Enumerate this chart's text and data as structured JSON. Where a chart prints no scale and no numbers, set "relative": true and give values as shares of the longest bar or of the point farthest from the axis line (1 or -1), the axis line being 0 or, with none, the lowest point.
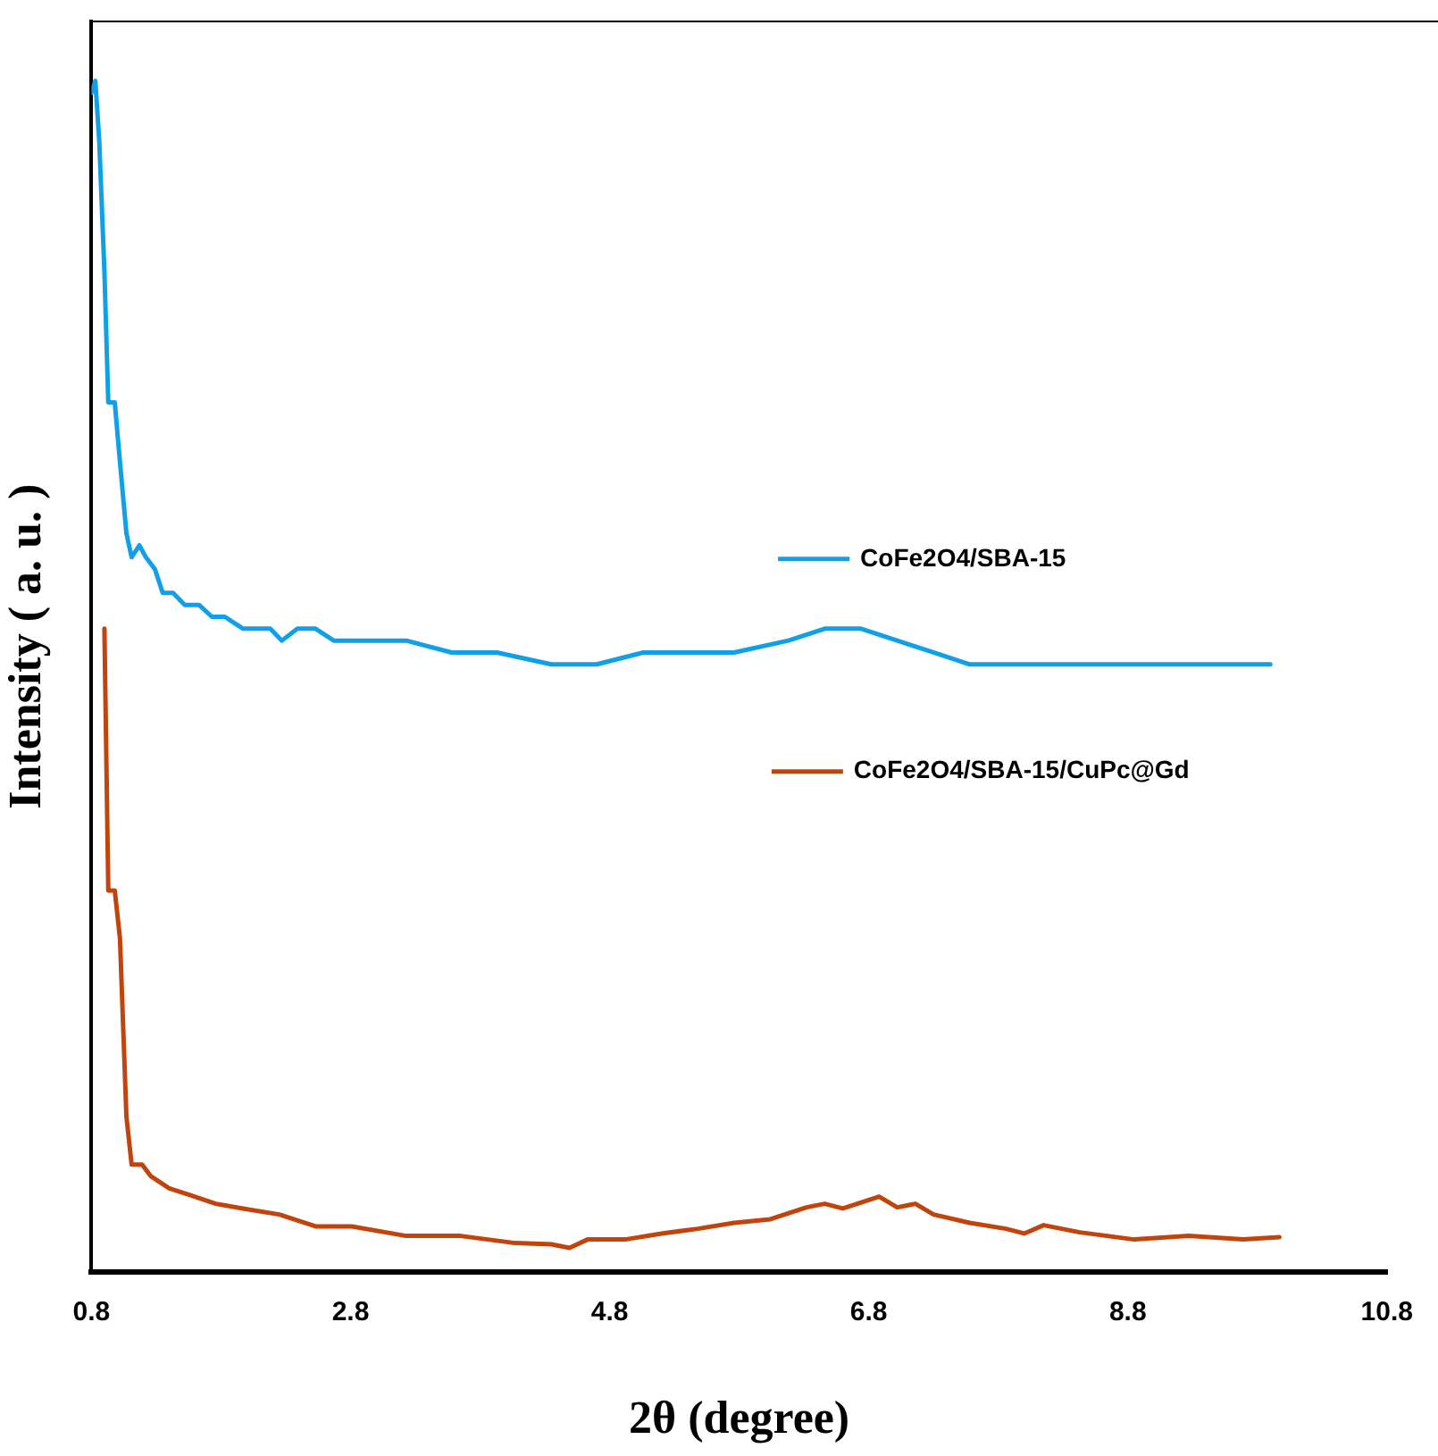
{
  "chart_data": {
    "type": "line",
    "relative": true,
    "xlabel": "2θ (degree)",
    "ylabel": "Intensity ( a. u. )",
    "xlim": [
      0.8,
      10.8
    ],
    "xticks": [
      0.8,
      2.8,
      4.8,
      6.8,
      8.8,
      10.8
    ],
    "legend": "right",
    "grid": false,
    "marker": "none",
    "line_style": "solid",
    "series": [
      {
        "name": "CoFe2O4/SBA-15",
        "color": "#0fa0e8",
        "x": [
          0.8,
          0.83,
          0.86,
          0.9,
          0.93,
          0.98,
          1.02,
          1.07,
          1.11,
          1.17,
          1.22,
          1.29,
          1.35,
          1.43,
          1.52,
          1.63,
          1.73,
          1.83,
          1.97,
          2.08,
          2.18,
          2.27,
          2.39,
          2.53,
          2.67,
          2.88,
          3.23,
          3.58,
          3.93,
          4.35,
          4.7,
          5.06,
          5.2,
          5.34,
          5.76,
          6.18,
          6.46,
          6.74,
          7.02,
          7.3,
          7.58,
          7.86,
          8.29,
          8.71,
          9.13,
          9.55,
          9.9
        ],
        "values": [
          0.99,
          1.0,
          0.95,
          0.84,
          0.73,
          0.73,
          0.68,
          0.62,
          0.6,
          0.61,
          0.6,
          0.59,
          0.57,
          0.57,
          0.56,
          0.56,
          0.55,
          0.55,
          0.54,
          0.54,
          0.54,
          0.53,
          0.54,
          0.54,
          0.53,
          0.53,
          0.53,
          0.52,
          0.52,
          0.51,
          0.51,
          0.52,
          0.52,
          0.52,
          0.52,
          0.53,
          0.54,
          0.54,
          0.53,
          0.52,
          0.51,
          0.51,
          0.51,
          0.51,
          0.51,
          0.51,
          0.51
        ]
      },
      {
        "name": "CoFe2O4/SBA-15/CuPc@Gd",
        "color": "#c0440c",
        "x": [
          0.9,
          0.93,
          0.98,
          1.02,
          1.07,
          1.11,
          1.19,
          1.26,
          1.4,
          1.54,
          1.76,
          1.97,
          2.25,
          2.53,
          2.81,
          3.23,
          3.65,
          4.07,
          4.35,
          4.49,
          4.63,
          4.92,
          5.2,
          5.48,
          5.76,
          6.04,
          6.32,
          6.46,
          6.6,
          6.88,
          7.02,
          7.16,
          7.3,
          7.58,
          7.86,
          8.0,
          8.15,
          8.43,
          8.85,
          9.27,
          9.69,
          9.97
        ],
        "values": [
          0.54,
          0.32,
          0.32,
          0.28,
          0.13,
          0.09,
          0.09,
          0.08,
          0.07,
          0.065,
          0.057,
          0.053,
          0.048,
          0.038,
          0.038,
          0.03,
          0.03,
          0.024,
          0.023,
          0.02,
          0.027,
          0.027,
          0.032,
          0.036,
          0.041,
          0.044,
          0.054,
          0.057,
          0.053,
          0.063,
          0.054,
          0.057,
          0.048,
          0.041,
          0.036,
          0.032,
          0.039,
          0.033,
          0.027,
          0.03,
          0.027,
          0.029
        ]
      }
    ]
  }
}
